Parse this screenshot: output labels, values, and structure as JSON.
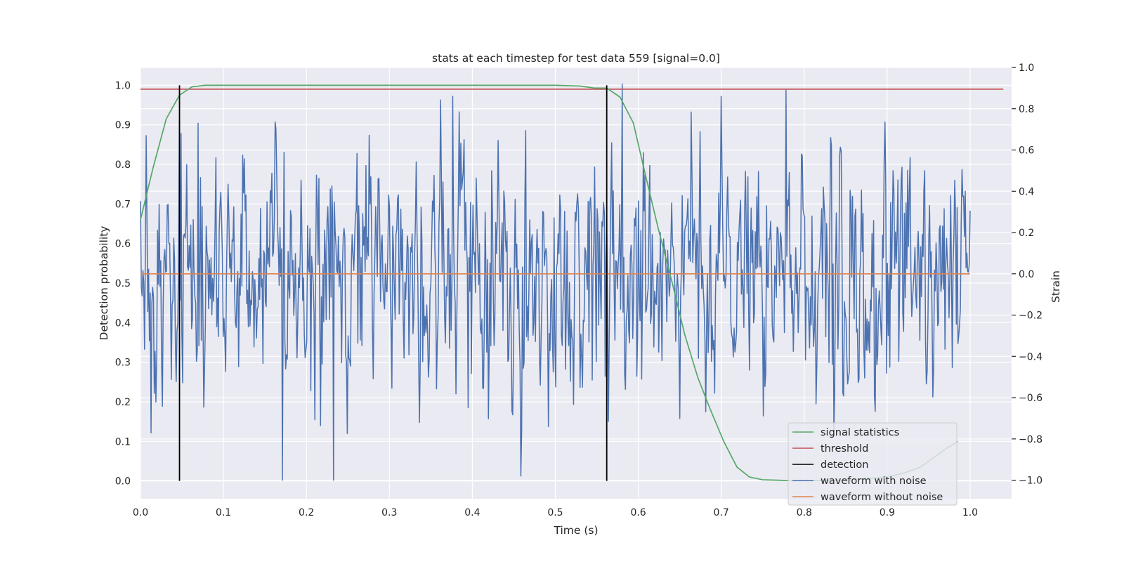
{
  "chart_data": {
    "type": "line",
    "title": "stats at each timestep for test data 559 [signal=0.0]",
    "xlabel": "Time (s)",
    "ylabel": "Detection probability",
    "ylabel_right": "Strain",
    "xlim": [
      0.0,
      1.05
    ],
    "ylim": [
      -0.045,
      1.045
    ],
    "ylim_right": [
      -1.09,
      1.0
    ],
    "xticks": [
      "0.0",
      "0.1",
      "0.2",
      "0.3",
      "0.4",
      "0.5",
      "0.6",
      "0.7",
      "0.8",
      "0.9",
      "1.0"
    ],
    "yticks": [
      "0.0",
      "0.1",
      "0.2",
      "0.3",
      "0.4",
      "0.5",
      "0.6",
      "0.7",
      "0.8",
      "0.9",
      "1.0"
    ],
    "yticks_right": [
      "−1.0",
      "−0.8",
      "−0.6",
      "−0.4",
      "−0.2",
      "0.0",
      "0.2",
      "0.4",
      "0.6",
      "0.8",
      "1.0"
    ],
    "grid": true,
    "legend_position": "lower-right",
    "series": [
      {
        "name": "signal statistics",
        "axis": "left",
        "color": "#55a868",
        "x": [
          0.0,
          0.015,
          0.031,
          0.047,
          0.062,
          0.078,
          0.094,
          0.11,
          0.2,
          0.3,
          0.4,
          0.5,
          0.53,
          0.547,
          0.562,
          0.578,
          0.594,
          0.609,
          0.625,
          0.641,
          0.656,
          0.672,
          0.687,
          0.703,
          0.719,
          0.734,
          0.75,
          0.766,
          0.781,
          0.797,
          0.81,
          0.85,
          0.9,
          0.92,
          0.94,
          0.95,
          0.96,
          0.97,
          0.985
        ],
        "y": [
          0.66,
          0.79,
          0.915,
          0.975,
          0.996,
          1.0,
          1.0,
          1.0,
          1.0,
          1.0,
          1.0,
          1.0,
          0.998,
          0.993,
          0.993,
          0.97,
          0.905,
          0.77,
          0.63,
          0.5,
          0.37,
          0.26,
          0.18,
          0.1,
          0.035,
          0.01,
          0.003,
          0.002,
          0.001,
          0.001,
          0.001,
          0.002,
          0.01,
          0.02,
          0.035,
          0.05,
          0.065,
          0.08,
          0.1
        ]
      },
      {
        "name": "threshold",
        "axis": "left",
        "color": "#c44e52",
        "x": [
          0.0,
          1.04
        ],
        "y": [
          0.99,
          0.99
        ]
      },
      {
        "name": "detection",
        "axis": "left",
        "color": "#000000",
        "segments": [
          {
            "x": 0.047,
            "y0": 0.0,
            "y1": 1.0
          },
          {
            "x": 0.562,
            "y0": 0.0,
            "y1": 1.0
          }
        ]
      },
      {
        "name": "waveform with noise",
        "axis": "right",
        "color": "#4c72b0",
        "x_start": 0.0,
        "x_end": 1.0,
        "seed": 559,
        "n_points": 1024,
        "approx_std": 0.3,
        "extremes": [
          {
            "x": 0.007,
            "y": 0.67
          },
          {
            "x": 0.069,
            "y": 0.73
          },
          {
            "x": 0.171,
            "y": -1.0
          },
          {
            "x": 0.233,
            "y": -1.0
          },
          {
            "x": 0.581,
            "y": 0.92
          },
          {
            "x": 0.778,
            "y": 0.89
          },
          {
            "x": 0.994,
            "y": 0.4
          }
        ]
      },
      {
        "name": "waveform without noise",
        "axis": "right",
        "color": "#dd8452",
        "x": [
          0.0,
          1.0
        ],
        "y": [
          0.0,
          0.0
        ]
      }
    ]
  }
}
